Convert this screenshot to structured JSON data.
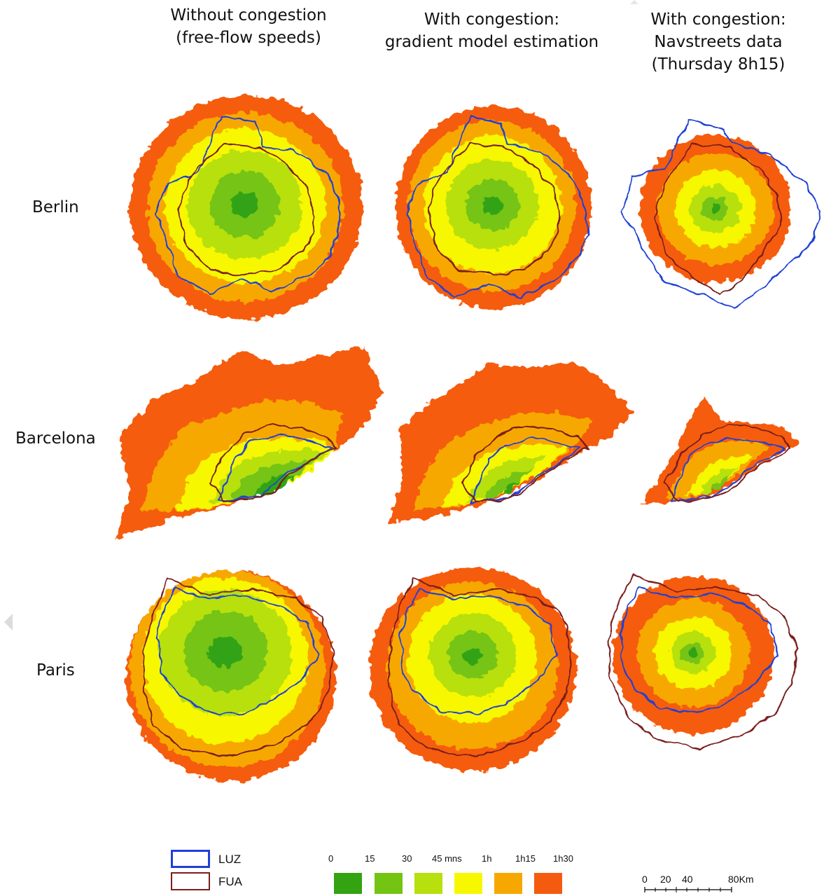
{
  "columns": [
    {
      "title": "Without congestion\n(free-flow speeds)"
    },
    {
      "title": "With congestion:\ngradient model estimation"
    },
    {
      "title": "With congestion:\nNavstreets data\n(Thursday  8h15)"
    }
  ],
  "rows": [
    {
      "label": "Berlin"
    },
    {
      "label": "Barcelona"
    },
    {
      "label": "Paris"
    }
  ],
  "legend": {
    "boundaries": [
      {
        "label": "LUZ",
        "color": "#1f3fd6"
      },
      {
        "label": "FUA",
        "color": "#7a1f1f"
      }
    ],
    "time_ticks": [
      "0",
      "15",
      "30",
      "45 mns",
      "1h",
      "1h15",
      "1h30"
    ],
    "time_colors": [
      "#33a312",
      "#74c414",
      "#b7e00e",
      "#f7f700",
      "#f7a800",
      "#f55b0f"
    ]
  },
  "scale_bar": {
    "labels": [
      "0",
      "20",
      "40",
      "80Km"
    ]
  },
  "colors": {
    "band_0_15": "#33a312",
    "band_15_30": "#74c414",
    "band_30_45": "#b7e00e",
    "band_45_60": "#f7f700",
    "band_60_75": "#f7a800",
    "band_75_90": "#f55b0f",
    "luz": "#1f3fd6",
    "fua": "#7a1f1f"
  }
}
